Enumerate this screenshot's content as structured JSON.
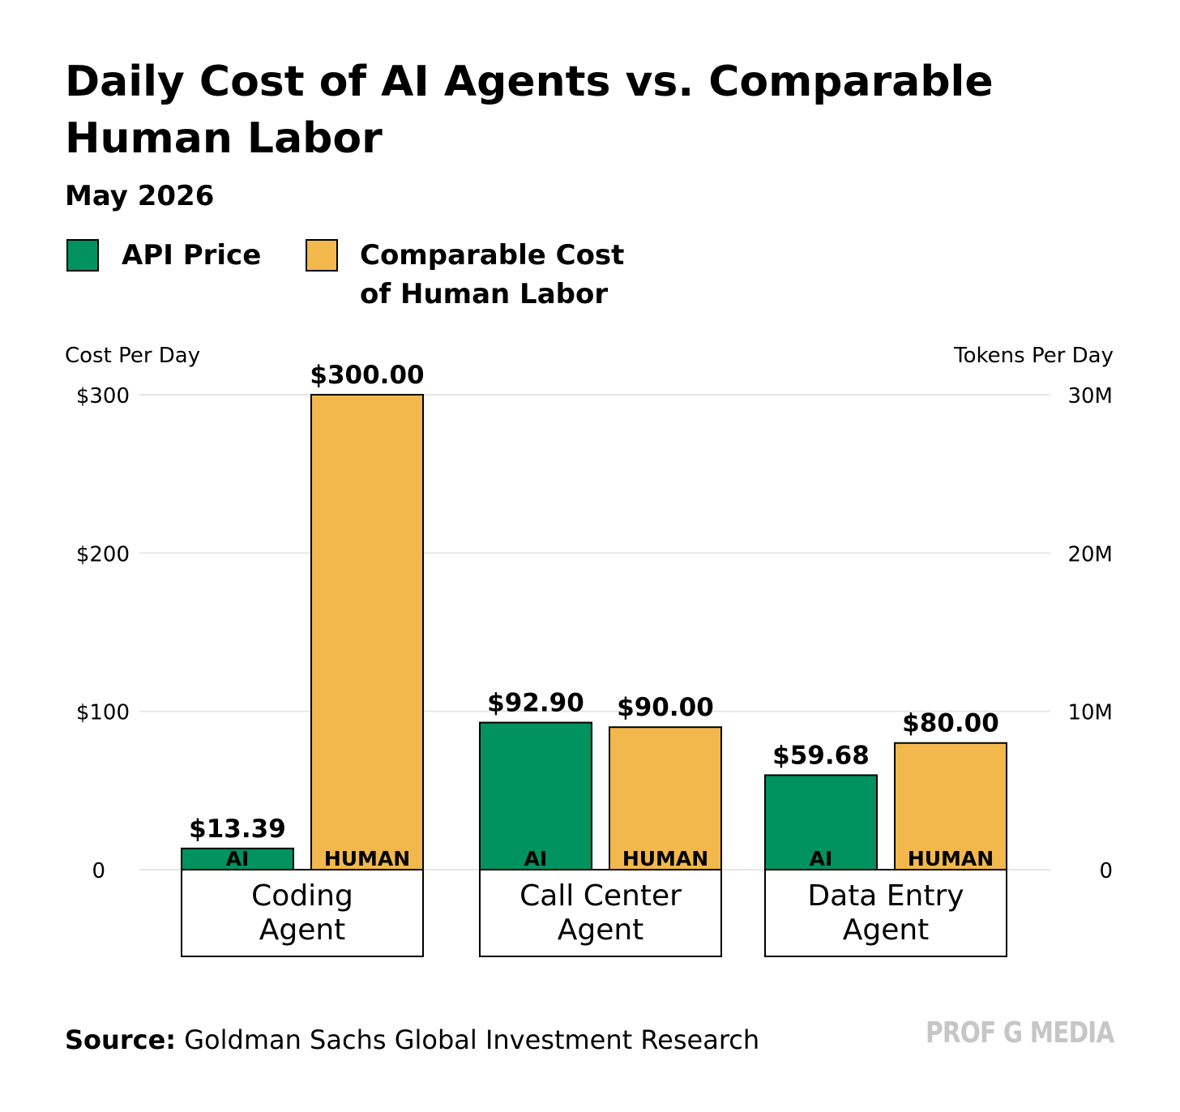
{
  "header": {
    "title": "Daily Cost of AI Agents vs. Comparable Human Labor",
    "subtitle": "May 2026"
  },
  "legend": {
    "api": {
      "label": "API Price",
      "color": "#009360"
    },
    "human": {
      "label_line1": "Comparable Cost",
      "label_line2": "of Human Labor",
      "color": "#F2B84B"
    }
  },
  "footer": {
    "source_label": "Source:",
    "source_text": "Goldman Sachs Global Investment Research",
    "brand": "PROF G MEDIA"
  },
  "chart_data": {
    "type": "bar",
    "title": "Daily Cost of AI Agents vs. Comparable Human Labor",
    "subtitle": "May 2026",
    "ylabel": "Cost Per Day",
    "y2label": "Tokens Per Day",
    "ylim": [
      0,
      300
    ],
    "y2lim": [
      0,
      30000000
    ],
    "yticks": [
      {
        "value": 0,
        "label": "0"
      },
      {
        "value": 100,
        "label": "$100"
      },
      {
        "value": 200,
        "label": "$200"
      },
      {
        "value": 300,
        "label": "$300"
      }
    ],
    "y2ticks": [
      {
        "value": 0,
        "label": "0"
      },
      {
        "value": 10000000,
        "label": "10M"
      },
      {
        "value": 20000000,
        "label": "20M"
      },
      {
        "value": 30000000,
        "label": "30M"
      }
    ],
    "categories": [
      "Coding Agent",
      "Call Center Agent",
      "Data Entry Agent"
    ],
    "category_lines": [
      [
        "Coding",
        "Agent"
      ],
      [
        "Call Center",
        "Agent"
      ],
      [
        "Data Entry",
        "Agent"
      ]
    ],
    "bar_inner_labels": [
      "AI",
      "HUMAN"
    ],
    "grid": true,
    "series": [
      {
        "name": "API Price",
        "values": [
          13.39,
          92.9,
          59.68
        ],
        "labels": [
          "$13.39",
          "$92.90",
          "$59.68"
        ],
        "color": "#009360"
      },
      {
        "name": "Comparable Cost of Human Labor",
        "values": [
          300.0,
          90.0,
          80.0
        ],
        "labels": [
          "$300.00",
          "$90.00",
          "$80.00"
        ],
        "color": "#F2B84B"
      }
    ]
  }
}
